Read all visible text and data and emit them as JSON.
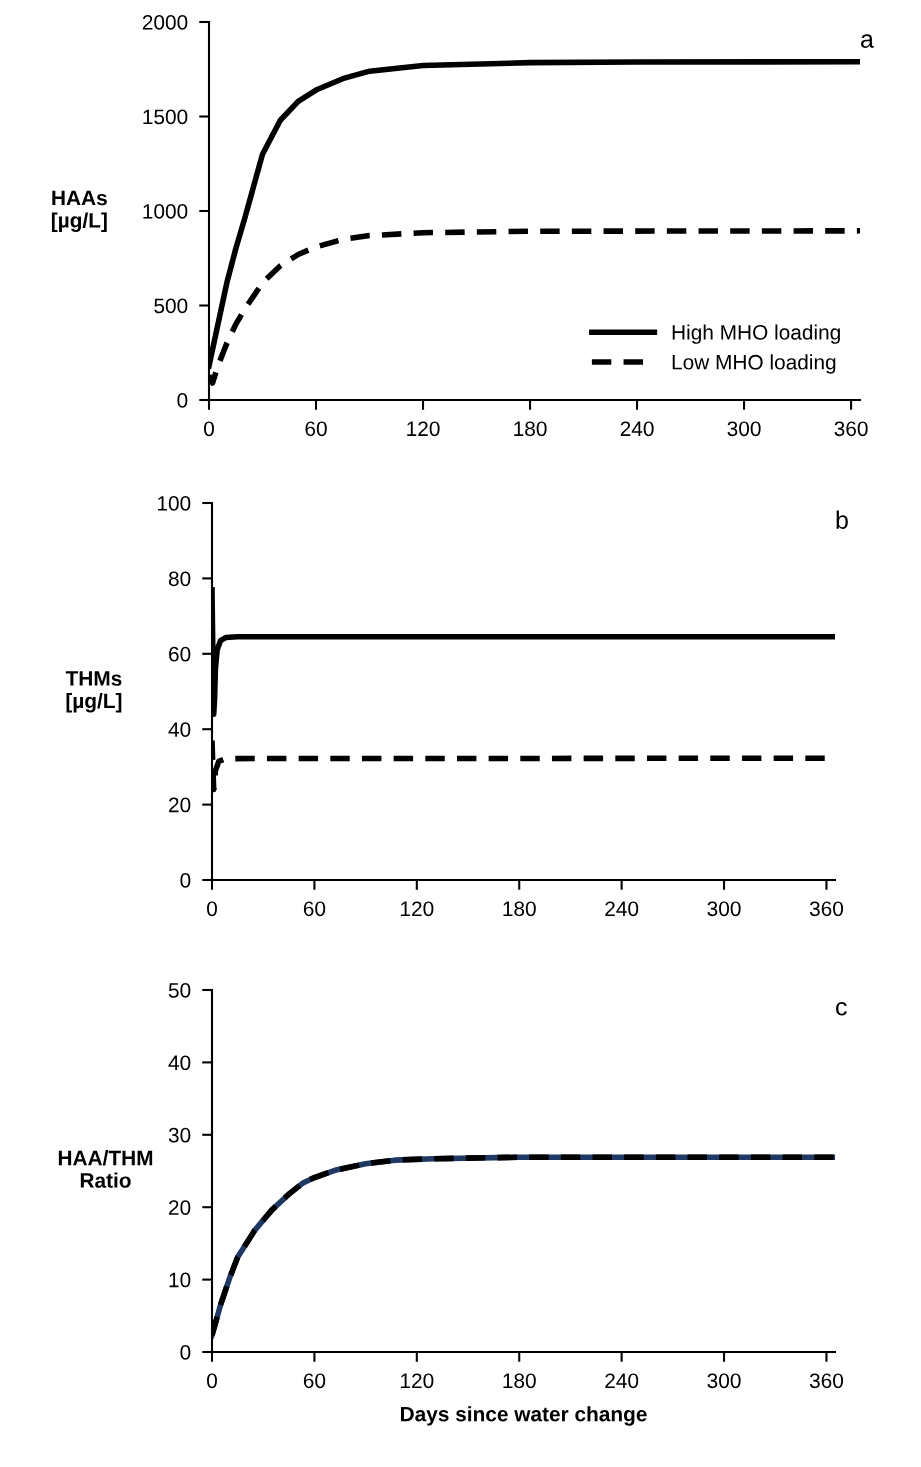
{
  "chart_data": [
    {
      "type": "line",
      "ylabel": "HAAs\n[µg/L]",
      "annotations": [
        "a"
      ],
      "xlim": [
        0,
        365
      ],
      "xticks": [
        0,
        60,
        120,
        180,
        240,
        300,
        360
      ],
      "ylim": [
        0,
        2000
      ],
      "yticks": [
        0,
        500,
        1000,
        1500,
        2000
      ],
      "legend": "bottom right",
      "grid": false,
      "marker": "none",
      "series": [
        {
          "name": "High MHO loading",
          "color": "#000000",
          "line_style": "solid",
          "x": [
            0,
            5,
            10,
            15,
            20,
            30,
            40,
            50,
            60,
            75,
            90,
            120,
            180,
            240,
            365
          ],
          "values": [
            180,
            400,
            620,
            800,
            960,
            1300,
            1480,
            1580,
            1640,
            1700,
            1740,
            1770,
            1785,
            1788,
            1790
          ]
        },
        {
          "name": "Low MHO loading",
          "color": "#000000",
          "line_style": "dashed",
          "x": [
            0,
            2,
            5,
            10,
            15,
            20,
            30,
            40,
            50,
            60,
            75,
            90,
            120,
            180,
            365
          ],
          "values": [
            130,
            90,
            180,
            300,
            400,
            480,
            620,
            710,
            770,
            810,
            850,
            870,
            885,
            893,
            895
          ]
        }
      ]
    },
    {
      "type": "line",
      "ylabel": "THMs\n[µg/L]",
      "annotations": [
        "b"
      ],
      "xlim": [
        0,
        365
      ],
      "xticks": [
        0,
        60,
        120,
        180,
        240,
        300,
        360
      ],
      "ylim": [
        0,
        100
      ],
      "yticks": [
        0,
        20,
        40,
        60,
        80,
        100
      ],
      "grid": false,
      "marker": "none",
      "series": [
        {
          "color": "#000000",
          "line_style": "solid",
          "x": [
            0,
            0.5,
            1,
            1.5,
            2,
            3,
            5,
            8,
            15,
            365
          ],
          "values": [
            77,
            60,
            44,
            48,
            56,
            61,
            63.5,
            64.3,
            64.5,
            64.5
          ]
        },
        {
          "color": "#000000",
          "line_style": "dashed",
          "x": [
            0,
            0.5,
            1,
            1.5,
            2,
            4,
            8,
            365
          ],
          "values": [
            37,
            30,
            24,
            25,
            29,
            31.5,
            32.2,
            32.3
          ]
        }
      ]
    },
    {
      "type": "line",
      "ylabel": "HAA/THM\nRatio",
      "xlabel": "Days since water change",
      "annotations": [
        "c"
      ],
      "xlim": [
        0,
        365
      ],
      "xticks": [
        0,
        60,
        120,
        180,
        240,
        300,
        360
      ],
      "ylim": [
        0,
        50
      ],
      "yticks": [
        0,
        10,
        20,
        30,
        40,
        50
      ],
      "grid": false,
      "marker": "none",
      "series": [
        {
          "color": "#1f3864",
          "line_style": "solid",
          "x": [
            0,
            5,
            10,
            15,
            25,
            35,
            45,
            53,
            60,
            72,
            90,
            107,
            130,
            180,
            240,
            365
          ],
          "values": [
            2.3,
            6.5,
            10,
            13.1,
            16.8,
            19.6,
            21.8,
            23.3,
            24.1,
            25.1,
            26,
            26.5,
            26.7,
            26.9,
            26.9,
            26.9
          ]
        },
        {
          "color": "#000000",
          "line_style": "dashed",
          "x": [
            0,
            5,
            10,
            15,
            25,
            35,
            45,
            53,
            60,
            72,
            90,
            107,
            130,
            180,
            240,
            365
          ],
          "values": [
            2.3,
            6.5,
            10,
            13.1,
            16.8,
            19.6,
            21.8,
            23.3,
            24.1,
            25.1,
            26,
            26.5,
            26.7,
            26.9,
            26.9,
            26.9
          ]
        }
      ]
    }
  ]
}
